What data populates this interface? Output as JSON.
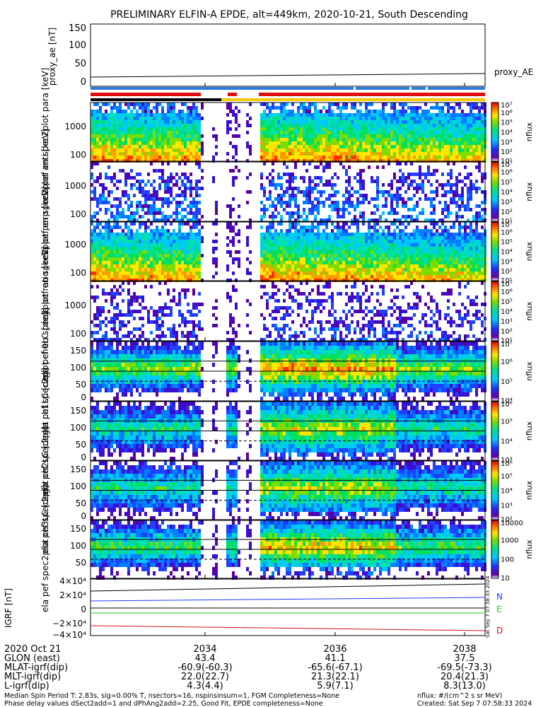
{
  "title": "PRELIMINARY ELFIN-A EPDE, alt=449km, 2020-10-21, South Descending",
  "colors": {
    "ae_line": "#000000",
    "bar_blue": "#2a7be0",
    "bar_red": "#e01010",
    "bar_black": "#000000",
    "bar_yellow": "#f5c800",
    "grf_n": "#1a3cff",
    "grf_e": "#22cc22",
    "grf_d": "#dd1111"
  },
  "panels": {
    "ae": {
      "ylabel": "proxy_ae [nT]",
      "ticks": [
        "0",
        "50",
        "100",
        "150"
      ],
      "legend": "proxy_AE"
    },
    "spec1": {
      "ylabel": "ela pef en spec2plot para [keV]",
      "ticks": [
        "100",
        "1000"
      ],
      "cb_ticks": [
        "10¹",
        "10²",
        "10³",
        "10⁴",
        "10⁵",
        "10⁶",
        "10⁷"
      ],
      "cb_label": "nflux"
    },
    "spec2": {
      "ylabel": "ela pef en spec2plot anti [keV]",
      "ticks": [
        "100",
        "1000"
      ],
      "cb_ticks": [
        "10¹",
        "10²",
        "10³",
        "10⁴",
        "10⁵",
        "10⁶",
        "10⁷"
      ],
      "cb_label": "nflux"
    },
    "spec3": {
      "ylabel": "ela pef en spec2plot perp [keV]",
      "ticks": [
        "100",
        "1000"
      ],
      "cb_ticks": [
        "10¹",
        "10²",
        "10³",
        "10⁴",
        "10⁵",
        "10⁶",
        "10⁷"
      ],
      "cb_label": "nflux"
    },
    "spec4": {
      "ylabel": "ela pef en spec2plot ratio [keV]",
      "ticks": [
        "100",
        "1000"
      ],
      "cb_ticks": [
        "10¹",
        "10²",
        "10³",
        "10⁴",
        "10⁵",
        "10⁶",
        "10⁷"
      ],
      "cb_label": "nflux"
    },
    "pa0": {
      "ylabel": "ela pef spec2plot ch0LC [deg]",
      "ticks": [
        "0",
        "50",
        "100",
        "150"
      ],
      "cb_ticks": [
        "10⁴",
        "10⁵",
        "10⁶",
        "10⁷"
      ],
      "cb_label": "nflux"
    },
    "pa1": {
      "ylabel": "ela pef spec2plot ch1LC [deg]",
      "ticks": [
        "0",
        "50",
        "100",
        "150"
      ],
      "cb_ticks": [
        "10³",
        "10⁴",
        "10⁵",
        "10⁶"
      ],
      "cb_label": "nflux"
    },
    "pa2": {
      "ylabel": "ela pef spec2plot ch2LC [deg]",
      "ticks": [
        "0",
        "50",
        "100",
        "150"
      ],
      "cb_ticks": [
        "10²",
        "10³",
        "10⁴",
        "10⁵",
        "10⁶"
      ],
      "cb_label": "nflux"
    },
    "pa3": {
      "ylabel": "ela pef spec2plot ch3LC [deg]",
      "ticks": [
        "50",
        "100",
        "150"
      ],
      "cb_ticks": [
        "10",
        "100",
        "1000",
        "10000"
      ],
      "cb_label": "nflux"
    },
    "grf": {
      "ylabel": "IGRF [nT]",
      "ticks": [
        "−4×10⁴",
        "−2×10⁴",
        "0",
        "2×10⁴",
        "4×10⁴"
      ],
      "legend": [
        "N",
        "E",
        "D"
      ]
    }
  },
  "x_ticks": [
    "2034",
    "2036",
    "2038"
  ],
  "ephemeris": {
    "rows": [
      {
        "label": "2020 Oct 21",
        "values": [
          "",
          "",
          ""
        ]
      },
      {
        "label": "GLON (east)",
        "values": [
          "43.4",
          "41.1",
          "37.5"
        ]
      },
      {
        "label": "MLAT-igrf(dip)",
        "values": [
          "-60.9(-60.3)",
          "-65.6(-67.1)",
          "-69.5(-73.3)"
        ]
      },
      {
        "label": "MLT-igrf(dip)",
        "values": [
          "22.0(22.7)",
          "21.3(22.1)",
          "20.4(21.3)"
        ]
      },
      {
        "label": "L-igrf(dip)",
        "values": [
          "4.3(4.4)",
          "5.9(7.1)",
          "8.3(13.0)"
        ]
      }
    ]
  },
  "footer": {
    "left1": "Median Spin Period T: 2.83s, sig=0.00% T, nsectors=16, nspinsinsum=1, FGM Completeness=None",
    "left2": "Phase delay values dSect2add=1 and dPhAng2add=2.25, Good Fit, EPDE completeness=None",
    "right1": "nflux: #/(cm^2 s sr MeV)",
    "right2": "Created: Sat Sep  7 07:58:33 2024",
    "side_stamp": "Sat Sep  7 07:58:33 2024"
  },
  "chart_data": [
    {
      "type": "line",
      "title": "PRELIMINARY ELFIN-A EPDE, alt=449km, 2020-10-21, South Descending",
      "ylabel": "proxy_ae [nT]",
      "ylim": [
        0,
        150
      ],
      "series": [
        {
          "name": "proxy_AE",
          "x": [
            "2033",
            "2038.5"
          ],
          "values": [
            12,
            22
          ]
        }
      ]
    },
    {
      "type": "line",
      "ylabel": "IGRF [nT]",
      "ylim": [
        -40000,
        40000
      ],
      "series": [
        {
          "name": "N",
          "x": [
            "2033",
            "2038.5"
          ],
          "values": [
            10000,
            12500
          ]
        },
        {
          "name": "E",
          "x": [
            "2033",
            "2038.5"
          ],
          "values": [
            -3500,
            -3500
          ]
        },
        {
          "name": "D",
          "x": [
            "2033",
            "2038.5"
          ],
          "values": [
            -31000,
            -37500
          ]
        }
      ]
    },
    {
      "type": "heatmap",
      "panels": [
        "spec2plot para",
        "spec2plot anti",
        "spec2plot perp",
        "spec2plot ratio",
        "ch0LC",
        "ch1LC",
        "ch2LC",
        "ch3LC"
      ],
      "x_ticks": [
        "2034",
        "2036",
        "2038"
      ],
      "colorbar_label": "nflux"
    }
  ]
}
